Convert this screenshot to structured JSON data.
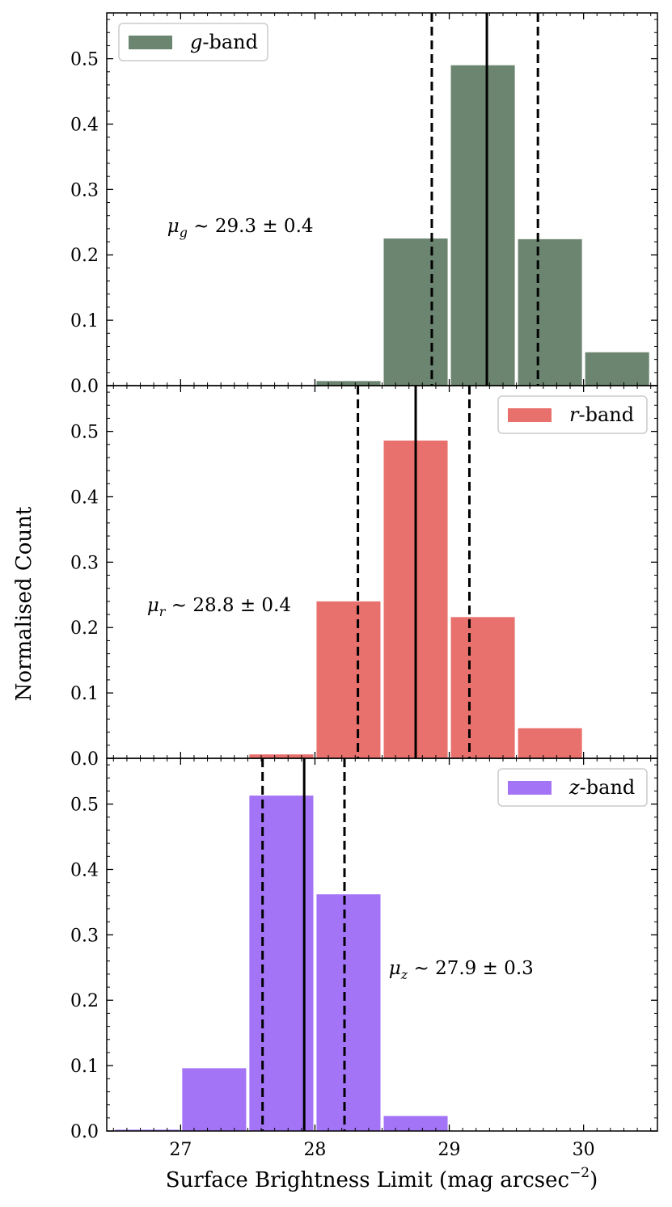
{
  "chart_data": {
    "type": "bar",
    "title": "",
    "xlabel": "Surface Brightness Limit (mag arcsec",
    "xlabel_exponent": "−2",
    "xlabel_close": ")",
    "ylabel": "Normalised Count",
    "xlim": [
      26.45,
      30.55
    ],
    "ylim": [
      0.0,
      0.57
    ],
    "xticks": [
      27,
      28,
      29,
      30
    ],
    "xtick_labels": [
      "27",
      "28",
      "29",
      "30"
    ],
    "yticks": [
      0.0,
      0.1,
      0.2,
      0.3,
      0.4,
      0.5
    ],
    "ytick_labels": [
      "0.0",
      "0.1",
      "0.2",
      "0.3",
      "0.4",
      "0.5"
    ],
    "bin_width": 0.5,
    "panels": [
      {
        "name": "g-band",
        "legend_var": "g",
        "legend_suffix": "-band",
        "legend_position": "top-left",
        "color": "#6b8570",
        "bin_starts": [
          28.0,
          28.5,
          29.0,
          29.5,
          30.0
        ],
        "values": [
          0.007,
          0.225,
          0.49,
          0.224,
          0.051
        ],
        "median": 29.28,
        "lower": 28.87,
        "upper": 29.66,
        "annotation": {
          "symbol": "μ",
          "sub": "g",
          "text": " ∼ 29.3 ± 0.4",
          "x": 26.9,
          "y": 0.245
        }
      },
      {
        "name": "r-band",
        "legend_var": "r",
        "legend_suffix": "-band",
        "legend_position": "top-right",
        "color": "#e8716d",
        "bin_starts": [
          27.5,
          28.0,
          28.5,
          29.0,
          29.5
        ],
        "values": [
          0.006,
          0.24,
          0.486,
          0.216,
          0.046
        ],
        "median": 28.75,
        "lower": 28.32,
        "upper": 29.15,
        "annotation": {
          "symbol": "μ",
          "sub": "r",
          "text": " ∼ 28.8 ± 0.4",
          "x": 26.75,
          "y": 0.235
        }
      },
      {
        "name": "z-band",
        "legend_var": "z",
        "legend_suffix": "-band",
        "legend_position": "top-right",
        "color": "#a374f5",
        "bin_starts": [
          26.5,
          27.0,
          27.5,
          28.0,
          28.5
        ],
        "values": [
          0.002,
          0.096,
          0.513,
          0.362,
          0.023
        ],
        "median": 27.92,
        "lower": 27.61,
        "upper": 28.22,
        "annotation": {
          "symbol": "μ",
          "sub": "z",
          "text": " ∼ 27.9 ± 0.3",
          "x": 28.55,
          "y": 0.25
        }
      }
    ]
  }
}
